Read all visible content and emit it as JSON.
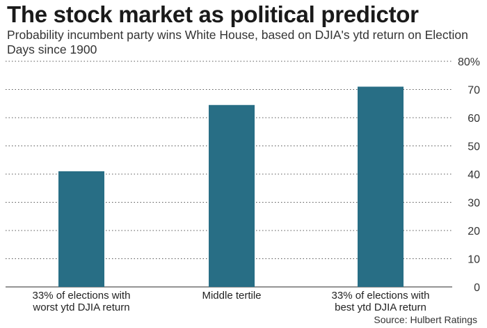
{
  "chart_data": {
    "type": "bar",
    "title": "The stock market as political predictor",
    "subtitle": "Probability incumbent party wins White House, based on DJIA's ytd return on Election Days since 1900",
    "categories": [
      [
        "33% of elections with",
        "worst ytd DJIA return"
      ],
      [
        "Middle tertile"
      ],
      [
        "33% of elections with",
        "best ytd DJIA return"
      ]
    ],
    "values": [
      41,
      64.5,
      71
    ],
    "ylim": [
      0,
      80
    ],
    "yticks": [
      0,
      10,
      20,
      30,
      40,
      50,
      60,
      70,
      80
    ],
    "ytick_labels": [
      "0",
      "10",
      "20",
      "30",
      "40",
      "50",
      "60",
      "70",
      "80%"
    ],
    "grid": true,
    "bar_color": "#286e85",
    "source": "Source: Hulbert Ratings"
  }
}
